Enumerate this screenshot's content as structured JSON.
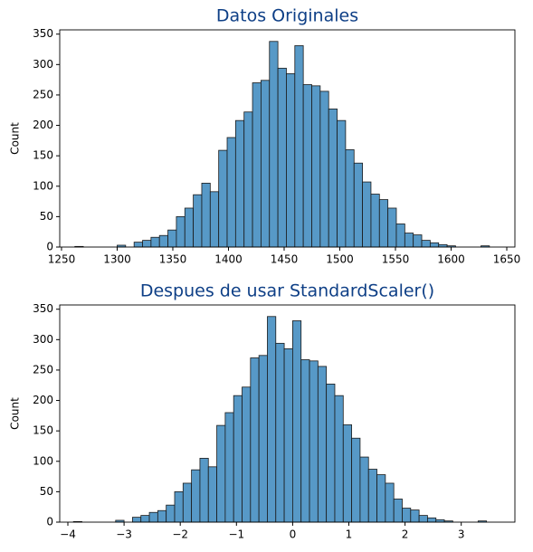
{
  "chart_data": [
    {
      "type": "histogram",
      "title": "Datos Originales",
      "y_label": "Count",
      "color": "#5799c7",
      "title_color": "#0e3f86",
      "bins": [
        1262,
        1269.6,
        1277.2,
        1284.8,
        1292.4,
        1300,
        1307.6,
        1315.2,
        1322.8,
        1330.4,
        1338,
        1345.6,
        1353.2,
        1360.8,
        1368.4,
        1376,
        1383.6,
        1391.2,
        1398.8,
        1406.4,
        1414,
        1421.6,
        1429.2,
        1436.8,
        1444.4,
        1452,
        1459.6,
        1467.2,
        1474.8,
        1482.4,
        1490,
        1497.6,
        1505.2,
        1512.8,
        1520.4,
        1528,
        1535.6,
        1543.2,
        1550.8,
        1558.4,
        1566,
        1573.6,
        1581.2,
        1588.8,
        1596.4,
        1604,
        1611.6,
        1619.2,
        1626.8,
        1634.4,
        1642
      ],
      "values": [
        1,
        0,
        0,
        0,
        0,
        3,
        0,
        8,
        11,
        16,
        19,
        28,
        50,
        64,
        86,
        105,
        91,
        159,
        180,
        208,
        222,
        270,
        274,
        338,
        294,
        285,
        331,
        267,
        265,
        256,
        227,
        208,
        160,
        138,
        107,
        87,
        78,
        64,
        38,
        23,
        20,
        11,
        7,
        4,
        2,
        0,
        0,
        0,
        2,
        0
      ],
      "xlim": [
        1248.4,
        1657.3
      ],
      "ylim": [
        0,
        357
      ],
      "xticks": [
        1250,
        1300,
        1350,
        1400,
        1450,
        1500,
        1550,
        1600,
        1650
      ],
      "yticks": [
        0,
        50,
        100,
        150,
        200,
        250,
        300,
        350
      ]
    },
    {
      "type": "histogram",
      "title": "Despues de usar StandardScaler()",
      "y_label": "Count",
      "color": "#5799c7",
      "title_color": "#0e3f86",
      "bins": [
        -3.9,
        -3.75,
        -3.6,
        -3.45,
        -3.3,
        -3.15,
        -3,
        -2.85,
        -2.7,
        -2.55,
        -2.4,
        -2.25,
        -2.1,
        -1.95,
        -1.8,
        -1.65,
        -1.5,
        -1.35,
        -1.2,
        -1.05,
        -0.9,
        -0.75,
        -0.6,
        -0.45,
        -0.3,
        -0.15,
        0,
        0.15,
        0.3,
        0.45,
        0.6,
        0.75,
        0.9,
        1.05,
        1.2,
        1.35,
        1.5,
        1.65,
        1.8,
        1.95,
        2.1,
        2.25,
        2.4,
        2.55,
        2.7,
        2.85,
        3,
        3.15,
        3.3,
        3.45,
        3.6
      ],
      "values": [
        1,
        0,
        0,
        0,
        0,
        3,
        0,
        8,
        11,
        16,
        19,
        28,
        50,
        64,
        86,
        105,
        91,
        159,
        180,
        208,
        222,
        270,
        274,
        338,
        294,
        285,
        331,
        267,
        265,
        256,
        227,
        208,
        160,
        138,
        107,
        87,
        78,
        64,
        38,
        23,
        20,
        11,
        7,
        4,
        2,
        0,
        0,
        0,
        2,
        0
      ],
      "xlim": [
        -4.145,
        3.955
      ],
      "ylim": [
        0,
        357
      ],
      "xticks": [
        {
          "value": -4,
          "label": "−4"
        },
        {
          "value": -3,
          "label": "−3"
        },
        {
          "value": -2,
          "label": "−2"
        },
        {
          "value": -1,
          "label": "−1"
        },
        0,
        1,
        2,
        3
      ],
      "yticks": [
        0,
        50,
        100,
        150,
        200,
        250,
        300,
        350
      ]
    }
  ]
}
